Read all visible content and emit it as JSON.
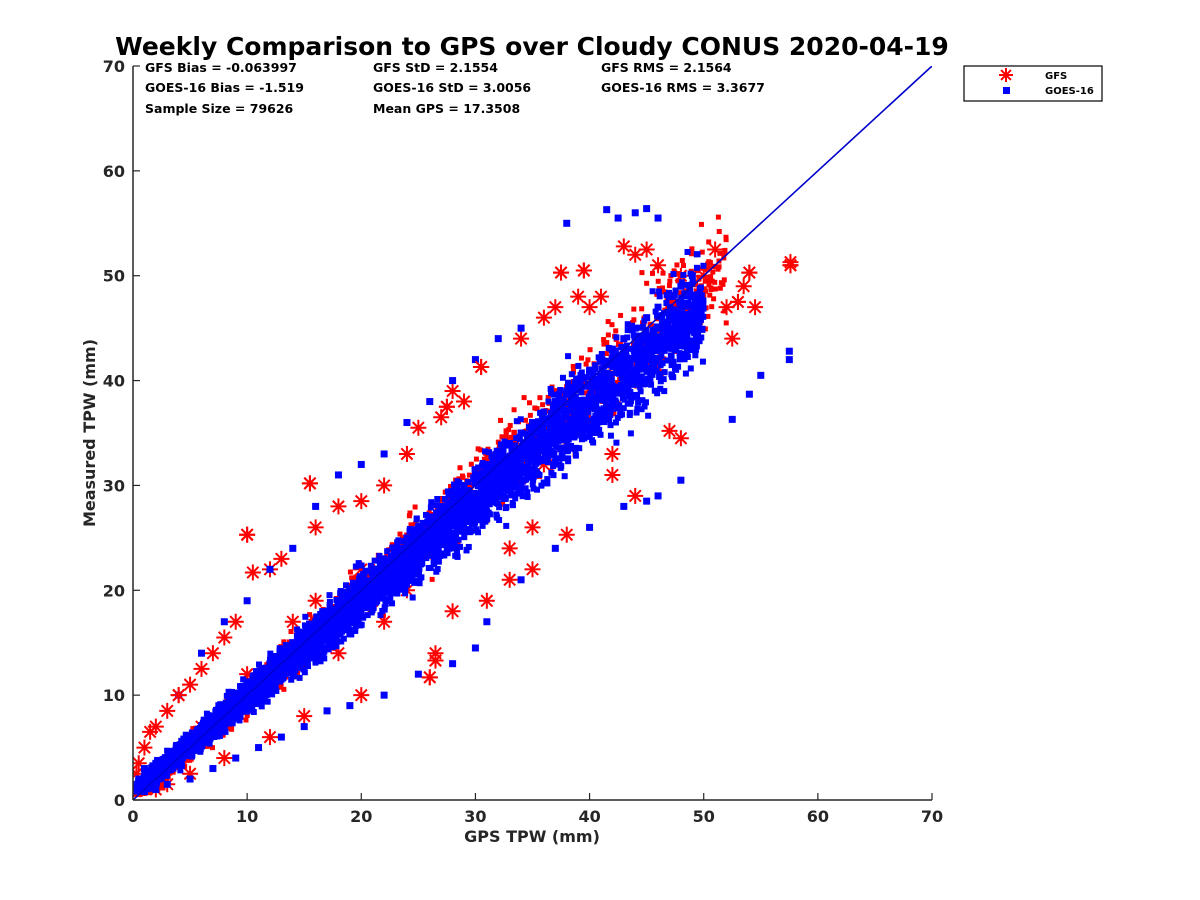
{
  "chart_data": {
    "type": "scatter",
    "title": "Weekly Comparison to GPS over Cloudy CONUS 2020-04-19",
    "xlabel": "GPS TPW (mm)",
    "ylabel": "Measured TPW (mm)",
    "xlim": [
      0,
      70
    ],
    "ylim": [
      0,
      70
    ],
    "xticks": [
      0,
      10,
      20,
      30,
      40,
      50,
      60,
      70
    ],
    "yticks": [
      0,
      10,
      20,
      30,
      40,
      50,
      60,
      70
    ],
    "grid": false,
    "legend_position": "outside top-right",
    "stats": {
      "gfs_bias": "GFS Bias = -0.063997",
      "gfs_std": "GFS StD = 2.1554",
      "gfs_rms": "GFS RMS = 2.1564",
      "goes_bias": "GOES-16 Bias = -1.519",
      "goes_std": "GOES-16 StD = 3.0056",
      "goes_rms": "GOES-16 RMS = 3.3677",
      "sample_size": "Sample Size = 79626",
      "mean_gps": "Mean GPS = 17.3508"
    },
    "one_to_one_line": {
      "x": [
        0,
        70
      ],
      "y": [
        0,
        70
      ],
      "color": "#0000cc"
    },
    "series": [
      {
        "name": "GFS",
        "marker": "asterisk",
        "color": "#ff0000",
        "points": [
          [
            0.5,
            3.5
          ],
          [
            1,
            5
          ],
          [
            1.5,
            6.5
          ],
          [
            2,
            7
          ],
          [
            3,
            8.5
          ],
          [
            4,
            10
          ],
          [
            5,
            11
          ],
          [
            6,
            12.5
          ],
          [
            7,
            14
          ],
          [
            8,
            15.5
          ],
          [
            9,
            17
          ],
          [
            10,
            25.3
          ],
          [
            10.5,
            21.7
          ],
          [
            12,
            22
          ],
          [
            13,
            23
          ],
          [
            15.5,
            30.2
          ],
          [
            16,
            26
          ],
          [
            18,
            28
          ],
          [
            20,
            28.5
          ],
          [
            22,
            30
          ],
          [
            24,
            33
          ],
          [
            25,
            35.5
          ],
          [
            26,
            11.7
          ],
          [
            26.5,
            13.3
          ],
          [
            26.5,
            14
          ],
          [
            27,
            36.5
          ],
          [
            27.5,
            37.5
          ],
          [
            28,
            39
          ],
          [
            29,
            38
          ],
          [
            30.5,
            41.3
          ],
          [
            31,
            19
          ],
          [
            33,
            21
          ],
          [
            34,
            44
          ],
          [
            35,
            22
          ],
          [
            36,
            46
          ],
          [
            37,
            47
          ],
          [
            37.5,
            50.3
          ],
          [
            38,
            25.3
          ],
          [
            39,
            48
          ],
          [
            39.5,
            50.5
          ],
          [
            40,
            47
          ],
          [
            41,
            48
          ],
          [
            42,
            33
          ],
          [
            43,
            52.8
          ],
          [
            44,
            52
          ],
          [
            45,
            52.5
          ],
          [
            46,
            51
          ],
          [
            47,
            35.2
          ],
          [
            48,
            50
          ],
          [
            50,
            50
          ],
          [
            51,
            52.5
          ],
          [
            52,
            47
          ],
          [
            53,
            47.5
          ],
          [
            53.5,
            49
          ],
          [
            54,
            50.3
          ],
          [
            54.5,
            47
          ],
          [
            52.5,
            44
          ],
          [
            57.6,
            51
          ],
          [
            57.6,
            51.3
          ],
          [
            48,
            34.5
          ],
          [
            44,
            29
          ],
          [
            42,
            31
          ],
          [
            35,
            26
          ],
          [
            33,
            24
          ],
          [
            28,
            18
          ],
          [
            20,
            10
          ],
          [
            15,
            8
          ],
          [
            12,
            6
          ],
          [
            8,
            4
          ],
          [
            5,
            2.5
          ],
          [
            3,
            1.5
          ],
          [
            2,
            1
          ],
          [
            1,
            1.5
          ],
          [
            0.3,
            2.5
          ],
          [
            6,
            7
          ],
          [
            14,
            17
          ],
          [
            18,
            14
          ],
          [
            22,
            17
          ],
          [
            30,
            28
          ],
          [
            36,
            32
          ],
          [
            40,
            36
          ],
          [
            44,
            40
          ],
          [
            46,
            41
          ],
          [
            38,
            38
          ],
          [
            32,
            30
          ],
          [
            26,
            26
          ],
          [
            24,
            20
          ],
          [
            20,
            22
          ],
          [
            16,
            19
          ],
          [
            10,
            12
          ]
        ]
      },
      {
        "name": "GOES-16",
        "marker": "square",
        "color": "#0000ff",
        "points": [
          [
            0.5,
            2
          ],
          [
            1,
            3
          ],
          [
            2,
            3.5
          ],
          [
            3,
            4
          ],
          [
            4,
            5
          ],
          [
            5,
            6
          ],
          [
            6,
            7
          ],
          [
            7,
            8
          ],
          [
            8,
            9
          ],
          [
            9,
            10
          ],
          [
            10,
            11
          ],
          [
            11,
            12
          ],
          [
            12,
            13
          ],
          [
            13,
            14
          ],
          [
            14,
            15
          ],
          [
            15,
            16
          ],
          [
            16,
            17
          ],
          [
            17,
            18
          ],
          [
            18,
            19
          ],
          [
            19,
            20
          ],
          [
            20,
            21
          ],
          [
            21,
            22
          ],
          [
            22,
            23
          ],
          [
            23,
            24
          ],
          [
            24,
            25
          ],
          [
            25,
            26
          ],
          [
            26,
            27
          ],
          [
            27,
            28
          ],
          [
            28,
            29
          ],
          [
            29,
            30
          ],
          [
            30,
            31
          ],
          [
            31,
            32
          ],
          [
            32,
            33
          ],
          [
            33,
            34
          ],
          [
            34,
            35
          ],
          [
            35,
            36
          ],
          [
            36,
            37
          ],
          [
            37,
            38
          ],
          [
            38,
            39
          ],
          [
            39,
            40
          ],
          [
            40,
            41
          ],
          [
            41,
            42
          ],
          [
            42,
            43
          ],
          [
            43,
            44
          ],
          [
            44,
            45
          ],
          [
            45,
            46
          ],
          [
            46,
            47
          ],
          [
            47,
            48
          ],
          [
            48,
            49
          ],
          [
            49,
            50
          ],
          [
            41.5,
            56.3
          ],
          [
            42.5,
            55.5
          ],
          [
            44,
            56
          ],
          [
            45,
            56.4
          ],
          [
            46,
            55.5
          ],
          [
            38,
            55
          ],
          [
            57.5,
            42
          ],
          [
            57.5,
            42.8
          ],
          [
            54,
            38.7
          ],
          [
            52.5,
            36.3
          ],
          [
            55,
            40.5
          ],
          [
            48,
            30.5
          ],
          [
            46,
            29
          ],
          [
            45,
            28.5
          ],
          [
            43,
            28
          ],
          [
            40,
            26
          ],
          [
            37,
            24
          ],
          [
            34,
            21
          ],
          [
            31,
            17
          ],
          [
            30,
            14.5
          ],
          [
            28,
            13
          ],
          [
            25,
            12
          ],
          [
            22,
            10
          ],
          [
            19,
            9
          ],
          [
            17,
            8.5
          ],
          [
            15,
            7
          ],
          [
            13,
            6
          ],
          [
            11,
            5
          ],
          [
            9,
            4
          ],
          [
            7,
            3
          ],
          [
            5,
            2
          ],
          [
            3,
            1.5
          ],
          [
            2,
            1
          ],
          [
            1,
            0.8
          ],
          [
            4,
            10
          ],
          [
            6,
            14
          ],
          [
            8,
            17
          ],
          [
            10,
            19
          ],
          [
            12,
            22
          ],
          [
            14,
            24
          ],
          [
            16,
            28
          ],
          [
            18,
            31
          ],
          [
            20,
            32
          ],
          [
            22,
            33
          ],
          [
            24,
            36
          ],
          [
            26,
            38
          ],
          [
            28,
            40
          ],
          [
            30,
            42
          ],
          [
            32,
            44
          ],
          [
            34,
            45
          ]
        ]
      }
    ]
  }
}
